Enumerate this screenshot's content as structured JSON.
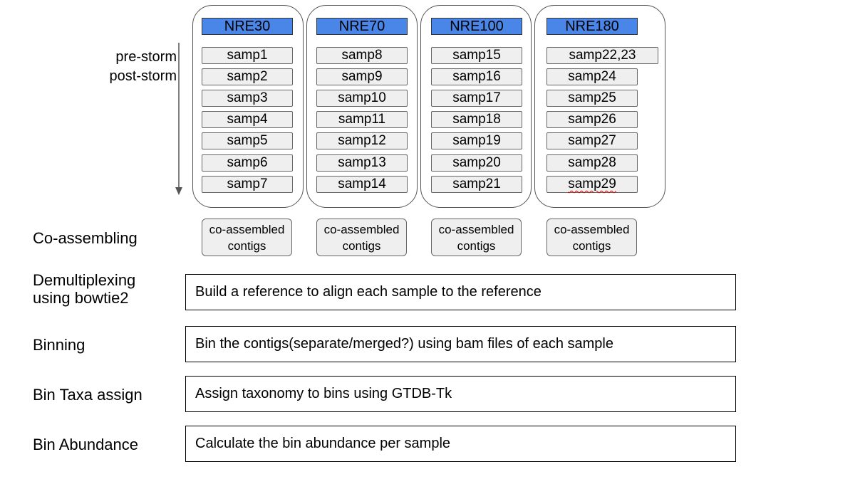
{
  "time_axis": {
    "start_label": "pre-storm",
    "end_label": "post-storm"
  },
  "groups": [
    {
      "name": "NRE30",
      "samples": [
        "samp1",
        "samp2",
        "samp3",
        "samp4",
        "samp5",
        "samp6",
        "samp7"
      ],
      "contigs": "co-assembled contigs"
    },
    {
      "name": "NRE70",
      "samples": [
        "samp8",
        "samp9",
        "samp10",
        "samp11",
        "samp12",
        "samp13",
        "samp14"
      ],
      "contigs": "co-assembled contigs"
    },
    {
      "name": "NRE100",
      "samples": [
        "samp15",
        "samp16",
        "samp17",
        "samp18",
        "samp19",
        "samp20",
        "samp21"
      ],
      "contigs": "co-assembled contigs"
    },
    {
      "name": "NRE180",
      "samples": [
        "samp22,23",
        "samp24",
        "samp25",
        "samp26",
        "samp27",
        "samp28",
        "samp29"
      ],
      "contigs": "co-assembled contigs"
    }
  ],
  "steps": [
    {
      "label": "Co-assembling",
      "description": ""
    },
    {
      "label": "Demultiplexing\nusing bowtie2",
      "description": "Build a reference to align each sample to the reference"
    },
    {
      "label": "Binning",
      "description": "Bin the contigs(separate/merged?) using bam files of each sample"
    },
    {
      "label": "Bin Taxa assign",
      "description": "Assign taxonomy to bins using GTDB-Tk"
    },
    {
      "label": "Bin Abundance",
      "description": "Calculate the bin abundance per sample"
    }
  ],
  "colors": {
    "header_fill": "#4a86e8",
    "sample_fill": "#efefef",
    "border": "#555555"
  }
}
